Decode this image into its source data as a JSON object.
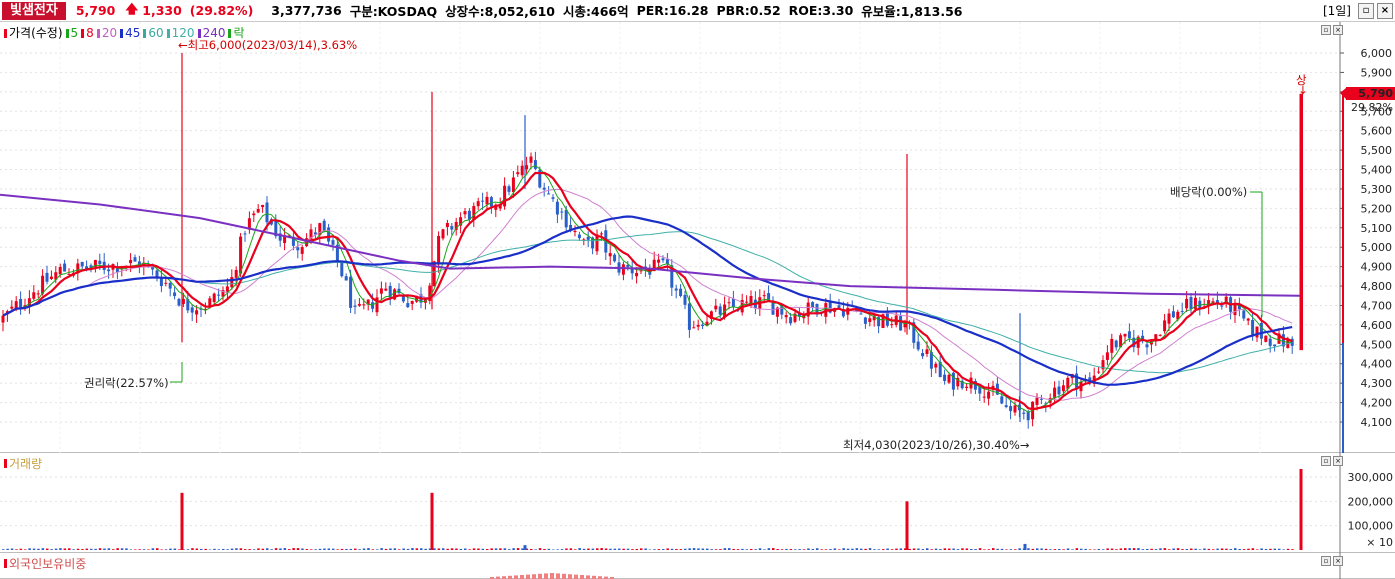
{
  "header": {
    "stock_name": "빛샘전자",
    "price": "5,790",
    "change_arrow": "arrow-up-icon",
    "change": "1,330",
    "change_pct": "(29.82%)",
    "volume": "3,377,736",
    "market": "구분:KOSDAQ",
    "shares": "상장수:8,052,610",
    "market_cap": "시총:466억",
    "per": "PER:16.28",
    "pbr": "PBR:0.52",
    "roe": "ROE:3.30",
    "float_ratio": "유보율:1,813.56",
    "period": "[1일]"
  },
  "price_panel": {
    "legend_prefix": "가격(수정)",
    "legend": [
      {
        "label": "5",
        "color": "#1aa51a"
      },
      {
        "label": "8",
        "color": "#e8001c"
      },
      {
        "label": "20",
        "color": "#c060c0"
      },
      {
        "label": "45",
        "color": "#1a2fc8"
      },
      {
        "label": "60",
        "color": "#3aa8a0"
      },
      {
        "label": "120",
        "color": "#40b0a8"
      },
      {
        "label": "240",
        "color": "#7a30c0"
      },
      {
        "label": "락",
        "color": "#1aa51a"
      }
    ],
    "annotations": {
      "high": "최고6,000(2023/03/14),3.63%",
      "low": "최저4,030(2023/10/26),30.40%",
      "rights": "권리락(22.57%)",
      "dividend": "배당락(0.00%)",
      "upper_limit": "상",
      "last_price": "5,790",
      "last_pct": "29.82%"
    },
    "y_ticks": [
      "6,000",
      "5,900",
      "5,800",
      "5,700",
      "5,600",
      "5,500",
      "5,400",
      "5,300",
      "5,200",
      "5,100",
      "5,000",
      "4,900",
      "4,800",
      "4,700",
      "4,600",
      "4,500",
      "4,400",
      "4,300",
      "4,200",
      "4,100"
    ],
    "colors": {
      "up": "#e8001c",
      "down": "#2a5fc8",
      "grid": "#e2e2e2"
    }
  },
  "volume_panel": {
    "title": "거래량",
    "y_ticks": [
      "300,000",
      "200,000",
      "100,000"
    ],
    "unit": "× 10"
  },
  "foreign_panel": {
    "title": "외국인보유비중"
  }
}
